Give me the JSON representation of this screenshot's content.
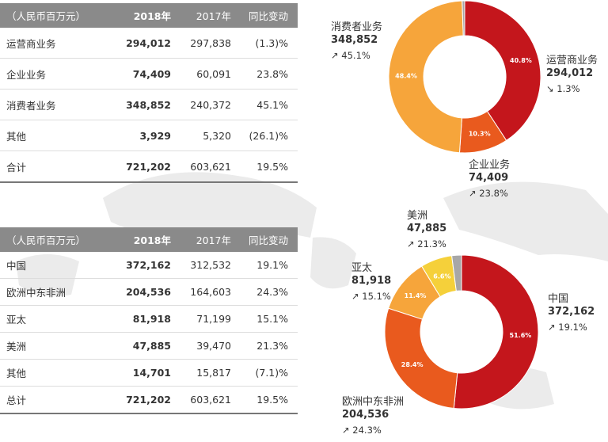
{
  "colors": {
    "red": "#c4161c",
    "orange": "#e95a1e",
    "amber": "#f6a53b",
    "yellow": "#f5d03a",
    "gray": "#a7a7a7",
    "header": "#8a8a8a"
  },
  "table1": {
    "headers": [
      "（人民币百万元）",
      "2018年",
      "2017年",
      "同比变动"
    ],
    "rows": [
      [
        "运营商业务",
        "294,012",
        "297,838",
        "(1.3)%"
      ],
      [
        "企业业务",
        "74,409",
        "60,091",
        "23.8%"
      ],
      [
        "消费者业务",
        "348,852",
        "240,372",
        "45.1%"
      ],
      [
        "其他",
        "3,929",
        "5,320",
        "(26.1)%"
      ],
      [
        "合计",
        "721,202",
        "603,621",
        "19.5%"
      ]
    ]
  },
  "table2": {
    "headers": [
      "（人民币百万元）",
      "2018年",
      "2017年",
      "同比变动"
    ],
    "rows": [
      [
        "中国",
        "372,162",
        "312,532",
        "19.1%"
      ],
      [
        "欧洲中东非洲",
        "204,536",
        "164,603",
        "24.3%"
      ],
      [
        "亚太",
        "81,918",
        "71,199",
        "15.1%"
      ],
      [
        "美洲",
        "47,885",
        "39,470",
        "21.3%"
      ],
      [
        "其他",
        "14,701",
        "15,817",
        "(7.1)%"
      ],
      [
        "总计",
        "721,202",
        "603,621",
        "19.5%"
      ]
    ]
  },
  "chart_data": [
    {
      "type": "pie",
      "donut": true,
      "categories": [
        "运营商业务",
        "企业业务",
        "消费者业务",
        "其他"
      ],
      "values": [
        294012,
        74409,
        348852,
        3929
      ],
      "percent_labels": [
        "40.8%",
        "10.3%",
        "48.4%",
        ""
      ],
      "change_labels": [
        "1.3%",
        "23.8%",
        "45.1%",
        ""
      ],
      "change_direction": [
        "down",
        "up",
        "up",
        ""
      ],
      "colors": [
        "#c4161c",
        "#e95a1e",
        "#f6a53b",
        "#a7a7a7"
      ],
      "labeled": [
        true,
        true,
        true,
        false
      ]
    },
    {
      "type": "pie",
      "donut": true,
      "categories": [
        "中国",
        "欧洲中东非洲",
        "亚太",
        "美洲",
        "其他"
      ],
      "values": [
        372162,
        204536,
        81918,
        47885,
        14701
      ],
      "percent_labels": [
        "51.6%",
        "28.4%",
        "11.4%",
        "6.6%",
        ""
      ],
      "change_labels": [
        "19.1%",
        "24.3%",
        "15.1%",
        "21.3%",
        ""
      ],
      "change_direction": [
        "up",
        "up",
        "up",
        "up",
        ""
      ],
      "colors": [
        "#c4161c",
        "#e95a1e",
        "#f6a53b",
        "#f5d03a",
        "#a7a7a7"
      ],
      "labeled": [
        true,
        true,
        true,
        true,
        false
      ]
    }
  ],
  "arrows": {
    "up": "↗",
    "down": "↘"
  }
}
